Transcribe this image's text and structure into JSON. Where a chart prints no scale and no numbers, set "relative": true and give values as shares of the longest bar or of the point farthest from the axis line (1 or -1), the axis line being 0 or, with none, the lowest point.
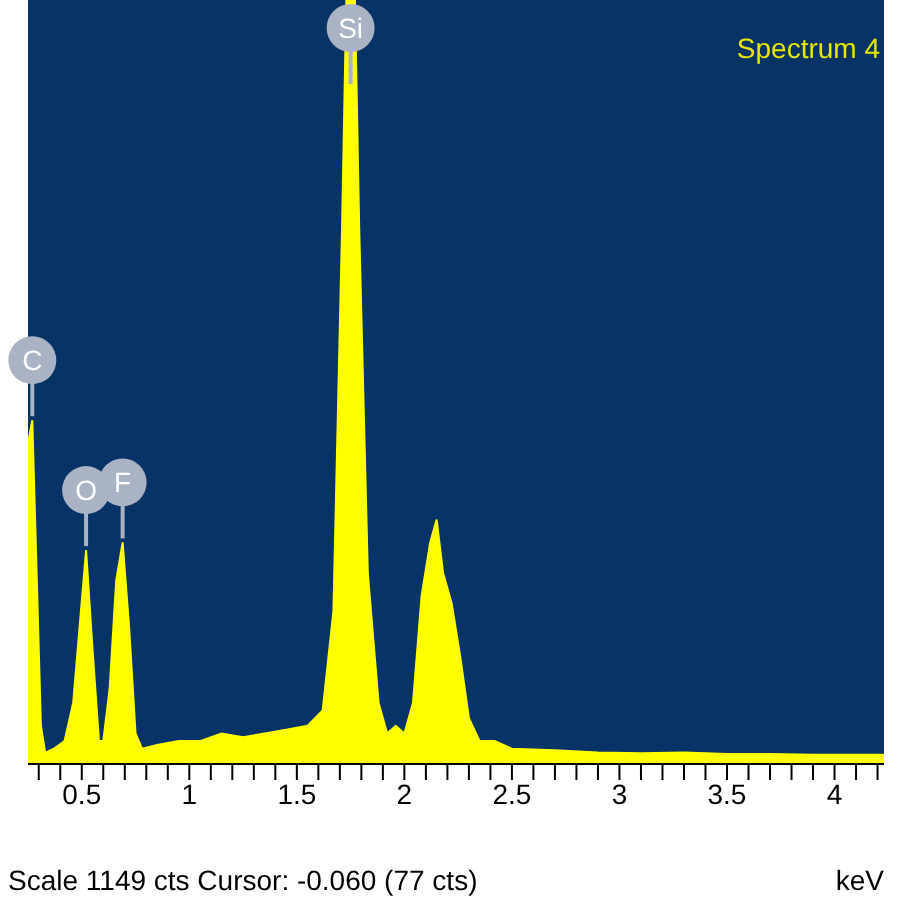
{
  "chart_data": {
    "type": "area",
    "title": "Spectrum 4",
    "xlabel": "keV",
    "relative": true,
    "xlim": [
      0.25,
      4.23
    ],
    "xticks": [
      {
        "value": 0.3,
        "label": null
      },
      {
        "value": 0.4,
        "label": null
      },
      0.5,
      {
        "value": 0.6,
        "label": null
      },
      {
        "value": 0.7,
        "label": null
      },
      {
        "value": 0.8,
        "label": null
      },
      {
        "value": 0.9,
        "label": null
      },
      1,
      {
        "value": 1.1,
        "label": null
      },
      {
        "value": 1.2,
        "label": null
      },
      {
        "value": 1.3,
        "label": null
      },
      {
        "value": 1.4,
        "label": null
      },
      1.5,
      {
        "value": 1.6,
        "label": null
      },
      {
        "value": 1.7,
        "label": null
      },
      {
        "value": 1.8,
        "label": null
      },
      {
        "value": 1.9,
        "label": null
      },
      2,
      {
        "value": 2.1,
        "label": null
      },
      {
        "value": 2.2,
        "label": null
      },
      {
        "value": 2.3,
        "label": null
      },
      {
        "value": 2.4,
        "label": null
      },
      2.5,
      {
        "value": 2.6,
        "label": null
      },
      {
        "value": 2.7,
        "label": null
      },
      {
        "value": 2.8,
        "label": null
      },
      {
        "value": 2.9,
        "label": null
      },
      3,
      {
        "value": 3.1,
        "label": null
      },
      {
        "value": 3.2,
        "label": null
      },
      {
        "value": 3.3,
        "label": null
      },
      {
        "value": 3.4,
        "label": null
      },
      3.5,
      {
        "value": 3.6,
        "label": null
      },
      {
        "value": 3.7,
        "label": null
      },
      {
        "value": 3.8,
        "label": null
      },
      {
        "value": 3.9,
        "label": null
      },
      4,
      {
        "value": 4.1,
        "label": null
      },
      {
        "value": 4.2,
        "label": null
      }
    ],
    "x": [
      0.25,
      0.27,
      0.29,
      0.31,
      0.33,
      0.37,
      0.42,
      0.46,
      0.49,
      0.52,
      0.55,
      0.58,
      0.6,
      0.63,
      0.66,
      0.69,
      0.72,
      0.75,
      0.78,
      0.85,
      0.95,
      1.05,
      1.15,
      1.25,
      1.35,
      1.45,
      1.55,
      1.62,
      1.67,
      1.71,
      1.73,
      1.77,
      1.79,
      1.83,
      1.88,
      1.92,
      1.96,
      2.0,
      2.04,
      2.08,
      2.12,
      2.15,
      2.18,
      2.22,
      2.26,
      2.3,
      2.35,
      2.42,
      2.5,
      2.7,
      2.9,
      3.1,
      3.3,
      3.5,
      3.7,
      3.9,
      4.1,
      4.23
    ],
    "series": [
      {
        "color": "#ffff00",
        "values": [
          0.42,
          0.45,
          0.25,
          0.05,
          0.015,
          0.02,
          0.03,
          0.08,
          0.18,
          0.28,
          0.15,
          0.03,
          0.03,
          0.1,
          0.24,
          0.29,
          0.18,
          0.04,
          0.02,
          0.025,
          0.03,
          0.03,
          0.04,
          0.035,
          0.04,
          0.045,
          0.05,
          0.07,
          0.2,
          0.7,
          1,
          1,
          0.7,
          0.25,
          0.08,
          0.04,
          0.05,
          0.04,
          0.08,
          0.22,
          0.29,
          0.32,
          0.25,
          0.21,
          0.14,
          0.06,
          0.03,
          0.03,
          0.02,
          0.018,
          0.015,
          0.014,
          0.015,
          0.013,
          0.013,
          0.012,
          0.012,
          0.012
        ]
      }
    ],
    "annotations": [
      {
        "text": "C",
        "x": 0.27,
        "y": 0.45
      },
      {
        "text": "O",
        "x": 0.52,
        "y": 0.28
      },
      {
        "text": "F",
        "x": 0.69,
        "y": 0.29
      },
      {
        "text": "Si",
        "x": 1.75,
        "y": 1
      },
      "Scale 1149 cts Cursor: -0.060  (77 cts)"
    ]
  }
}
